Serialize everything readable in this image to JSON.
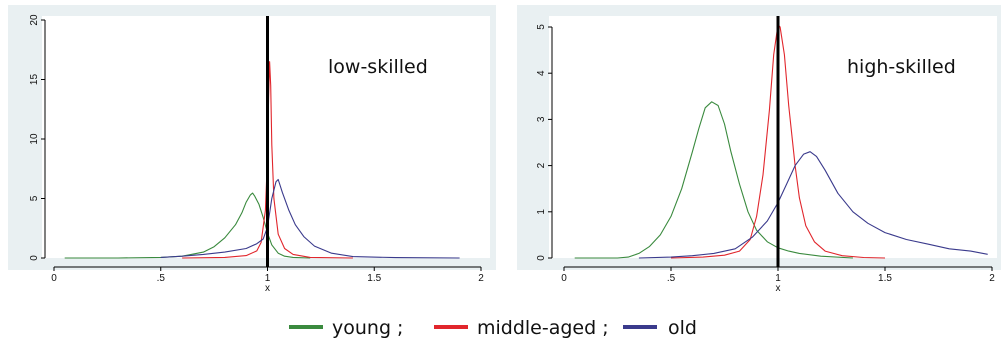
{
  "chart_data": [
    {
      "type": "line",
      "xlabel": "x",
      "ylabel": "",
      "xlim": [
        0,
        2
      ],
      "ylim": [
        0,
        20
      ],
      "xticks": [
        0,
        0.5,
        1,
        1.5,
        2
      ],
      "xtick_labels": [
        "0",
        ".5",
        "1",
        "1.5",
        "2"
      ],
      "yticks": [
        0,
        5,
        10,
        15,
        20
      ],
      "ytick_labels": [
        "0",
        "5",
        "10",
        "15",
        "20"
      ],
      "vline": 1,
      "annotation": "low-skilled",
      "grid": false,
      "series": [
        {
          "name": "young",
          "color": "#3a8a3e",
          "points": [
            [
              0.05,
              0
            ],
            [
              0.3,
              0
            ],
            [
              0.5,
              0.05
            ],
            [
              0.6,
              0.15
            ],
            [
              0.7,
              0.5
            ],
            [
              0.75,
              0.95
            ],
            [
              0.8,
              1.7
            ],
            [
              0.85,
              2.8
            ],
            [
              0.88,
              3.8
            ],
            [
              0.9,
              4.7
            ],
            [
              0.92,
              5.3
            ],
            [
              0.93,
              5.45
            ],
            [
              0.94,
              5.2
            ],
            [
              0.96,
              4.5
            ],
            [
              0.98,
              3.4
            ],
            [
              1.0,
              2.1
            ],
            [
              1.02,
              1.1
            ],
            [
              1.05,
              0.4
            ],
            [
              1.08,
              0.15
            ],
            [
              1.12,
              0.05
            ],
            [
              1.2,
              0
            ]
          ]
        },
        {
          "name": "middle-aged",
          "color": "#e1262c",
          "points": [
            [
              0.6,
              0
            ],
            [
              0.8,
              0.05
            ],
            [
              0.9,
              0.2
            ],
            [
              0.95,
              0.6
            ],
            [
              0.97,
              1.3
            ],
            [
              0.99,
              4.0
            ],
            [
              1.0,
              8.5
            ],
            [
              1.005,
              13.5
            ],
            [
              1.01,
              16.5
            ],
            [
              1.015,
              14.5
            ],
            [
              1.02,
              9.5
            ],
            [
              1.03,
              5.0
            ],
            [
              1.05,
              2.0
            ],
            [
              1.08,
              0.8
            ],
            [
              1.12,
              0.3
            ],
            [
              1.2,
              0.05
            ],
            [
              1.4,
              0
            ]
          ]
        },
        {
          "name": "old",
          "color": "#3a3a8c",
          "points": [
            [
              0.5,
              0.05
            ],
            [
              0.6,
              0.15
            ],
            [
              0.7,
              0.3
            ],
            [
              0.8,
              0.5
            ],
            [
              0.9,
              0.8
            ],
            [
              0.95,
              1.2
            ],
            [
              0.98,
              1.6
            ],
            [
              1.0,
              2.6
            ],
            [
              1.02,
              5.0
            ],
            [
              1.04,
              6.4
            ],
            [
              1.05,
              6.6
            ],
            [
              1.07,
              5.5
            ],
            [
              1.1,
              4.0
            ],
            [
              1.13,
              2.8
            ],
            [
              1.17,
              1.8
            ],
            [
              1.22,
              1.0
            ],
            [
              1.3,
              0.4
            ],
            [
              1.4,
              0.12
            ],
            [
              1.6,
              0.03
            ],
            [
              1.9,
              0
            ]
          ]
        }
      ]
    },
    {
      "type": "line",
      "xlabel": "x",
      "ylabel": "",
      "xlim": [
        0,
        2
      ],
      "ylim": [
        0,
        5
      ],
      "xticks": [
        0,
        0.5,
        1,
        1.5,
        2
      ],
      "xtick_labels": [
        "0",
        ".5",
        "1",
        "1.5",
        "2"
      ],
      "yticks": [
        0,
        1,
        2,
        3,
        4,
        5
      ],
      "ytick_labels": [
        "0",
        "1",
        "2",
        "3",
        "4",
        "5"
      ],
      "vline": 1,
      "annotation": "high-skilled",
      "grid": false,
      "series": [
        {
          "name": "young",
          "color": "#3a8a3e",
          "points": [
            [
              0.05,
              0
            ],
            [
              0.25,
              0
            ],
            [
              0.3,
              0.02
            ],
            [
              0.35,
              0.1
            ],
            [
              0.4,
              0.25
            ],
            [
              0.45,
              0.5
            ],
            [
              0.5,
              0.9
            ],
            [
              0.55,
              1.5
            ],
            [
              0.6,
              2.3
            ],
            [
              0.63,
              2.8
            ],
            [
              0.66,
              3.25
            ],
            [
              0.69,
              3.38
            ],
            [
              0.72,
              3.3
            ],
            [
              0.75,
              2.9
            ],
            [
              0.78,
              2.3
            ],
            [
              0.82,
              1.6
            ],
            [
              0.86,
              1.0
            ],
            [
              0.9,
              0.6
            ],
            [
              0.95,
              0.35
            ],
            [
              1.0,
              0.22
            ],
            [
              1.05,
              0.15
            ],
            [
              1.1,
              0.1
            ],
            [
              1.2,
              0.04
            ],
            [
              1.35,
              0
            ]
          ]
        },
        {
          "name": "middle-aged",
          "color": "#e1262c",
          "points": [
            [
              0.5,
              0
            ],
            [
              0.65,
              0.02
            ],
            [
              0.75,
              0.06
            ],
            [
              0.82,
              0.15
            ],
            [
              0.87,
              0.4
            ],
            [
              0.9,
              0.9
            ],
            [
              0.93,
              1.8
            ],
            [
              0.96,
              3.2
            ],
            [
              0.98,
              4.4
            ],
            [
              1.0,
              5.05
            ],
            [
              1.01,
              5.0
            ],
            [
              1.03,
              4.4
            ],
            [
              1.05,
              3.3
            ],
            [
              1.08,
              2.0
            ],
            [
              1.1,
              1.3
            ],
            [
              1.13,
              0.7
            ],
            [
              1.17,
              0.35
            ],
            [
              1.22,
              0.15
            ],
            [
              1.3,
              0.05
            ],
            [
              1.4,
              0.01
            ],
            [
              1.5,
              0
            ]
          ]
        },
        {
          "name": "old",
          "color": "#3a3a8c",
          "points": [
            [
              0.35,
              0
            ],
            [
              0.5,
              0.02
            ],
            [
              0.6,
              0.05
            ],
            [
              0.7,
              0.1
            ],
            [
              0.8,
              0.2
            ],
            [
              0.88,
              0.45
            ],
            [
              0.95,
              0.8
            ],
            [
              1.0,
              1.2
            ],
            [
              1.04,
              1.6
            ],
            [
              1.08,
              2.0
            ],
            [
              1.12,
              2.25
            ],
            [
              1.15,
              2.3
            ],
            [
              1.18,
              2.2
            ],
            [
              1.22,
              1.9
            ],
            [
              1.28,
              1.4
            ],
            [
              1.35,
              1.0
            ],
            [
              1.42,
              0.75
            ],
            [
              1.5,
              0.55
            ],
            [
              1.6,
              0.4
            ],
            [
              1.7,
              0.3
            ],
            [
              1.8,
              0.2
            ],
            [
              1.9,
              0.15
            ],
            [
              1.98,
              0.08
            ]
          ]
        }
      ]
    }
  ],
  "legend": {
    "placement": "bottom",
    "items": [
      {
        "label": "young ;",
        "color": "#3a8a3e"
      },
      {
        "label": "middle-aged ;",
        "color": "#e1262c"
      },
      {
        "label": "old",
        "color": "#3a3a8c"
      }
    ]
  }
}
